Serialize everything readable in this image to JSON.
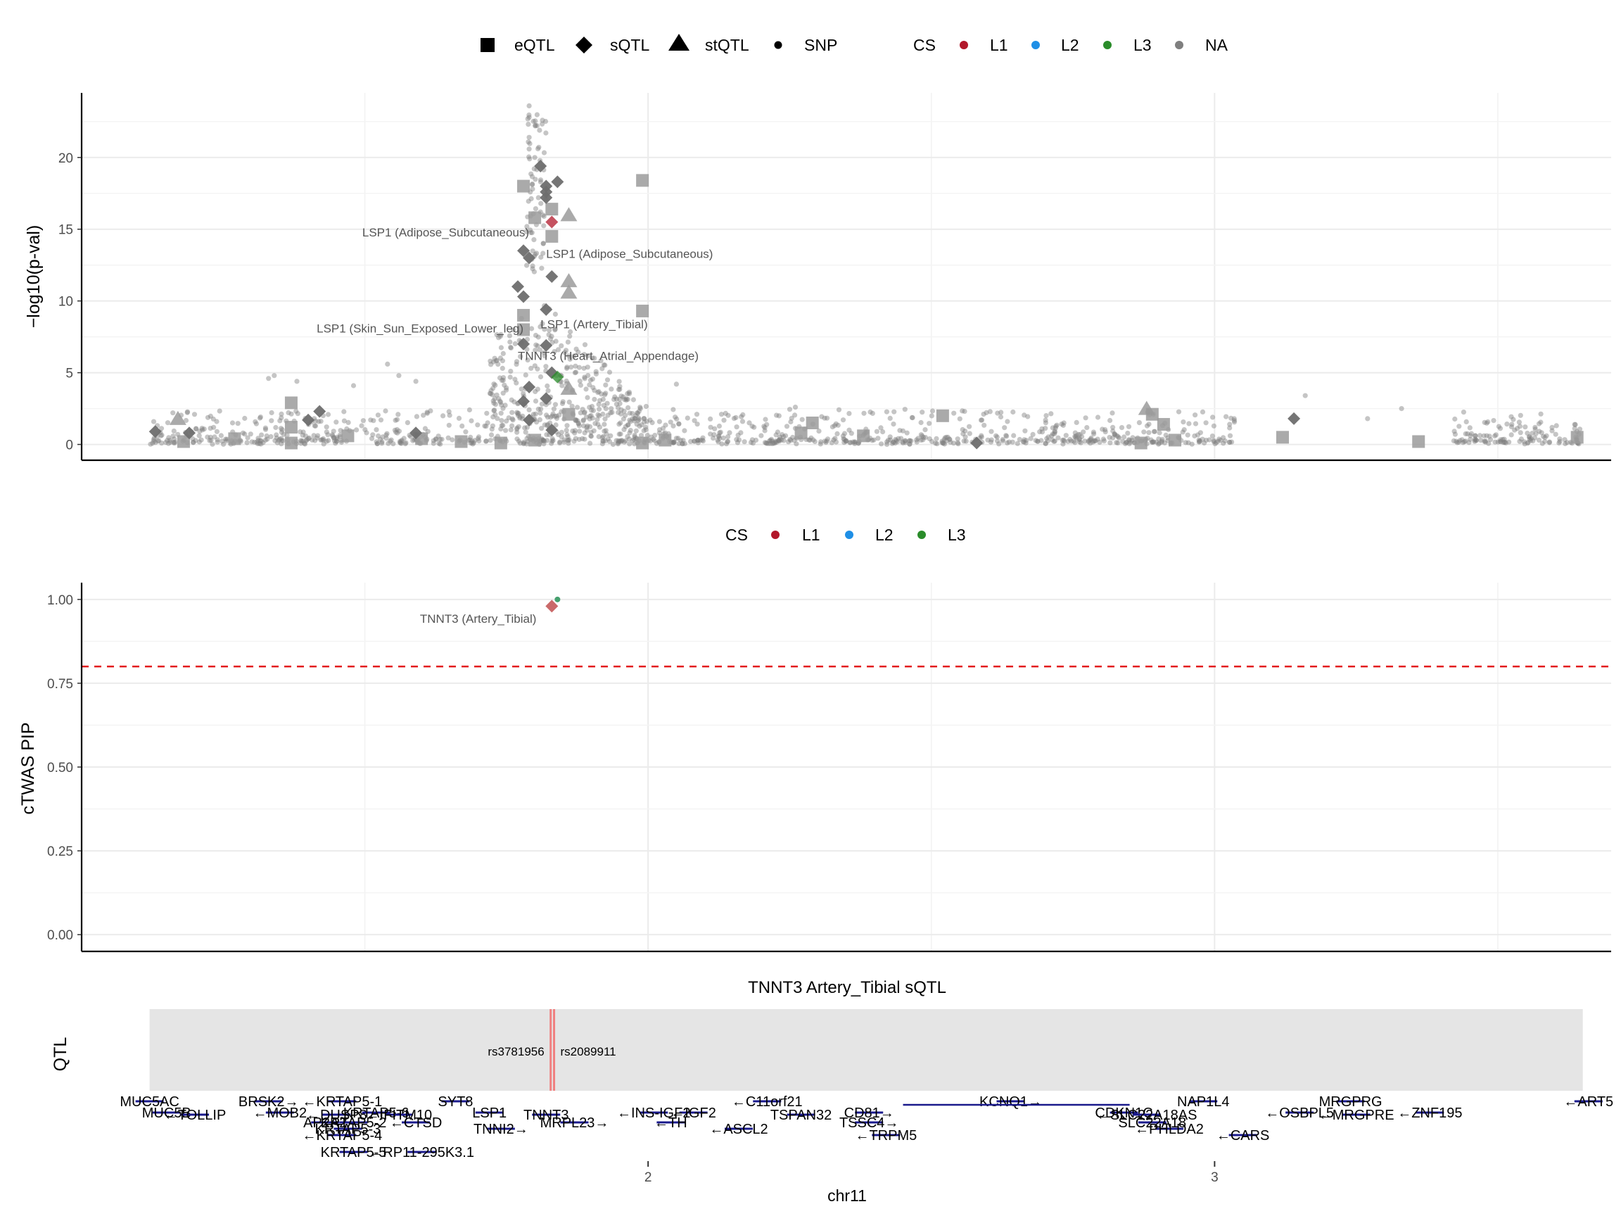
{
  "chart_data": [
    {
      "type": "scatter",
      "panel": "gwas",
      "ylabel": "−log10(p-val)",
      "ylim": [
        -1.1,
        24.5
      ],
      "xlim": [
        1.0,
        3.7
      ],
      "yticks": [
        0,
        5,
        10,
        15,
        20
      ],
      "grid": true,
      "legend": {
        "position": "top",
        "shapes": [
          {
            "label": "eQTL",
            "shape": "square"
          },
          {
            "label": "sQTL",
            "shape": "diamond"
          },
          {
            "label": "stQTL",
            "shape": "triangle"
          },
          {
            "label": "SNP",
            "shape": "circle"
          }
        ],
        "cs_title": "CS",
        "cs": [
          {
            "label": "L1",
            "color": "#b2182b"
          },
          {
            "label": "L2",
            "color": "#1f8fe6"
          },
          {
            "label": "L3",
            "color": "#2a8c2a"
          },
          {
            "label": "NA",
            "color": "#7f7f7f"
          }
        ]
      },
      "annotations": [
        {
          "text": "LSP1 (Adipose_Subcutaneous)",
          "x": 1.79,
          "y": 14.5,
          "anchor": "end"
        },
        {
          "text": "LSP1 (Adipose_Subcutaneous)",
          "x": 1.82,
          "y": 13.0,
          "anchor": "start"
        },
        {
          "text": "LSP1 (Skin_Sun_Exposed_Lower_leg)",
          "x": 1.78,
          "y": 7.8,
          "anchor": "end"
        },
        {
          "text": "LSP1 (Artery_Tibial)",
          "x": 1.81,
          "y": 8.1,
          "anchor": "start"
        },
        {
          "text": "TNNT3 (Heart_Atrial_Appendage)",
          "x": 1.77,
          "y": 5.9,
          "anchor": "start"
        }
      ],
      "qtl_markers": [
        {
          "type": "eQTL",
          "x": 1.18,
          "y": 0.2
        },
        {
          "type": "eQTL",
          "x": 1.27,
          "y": 0.4
        },
        {
          "type": "eQTL",
          "x": 1.37,
          "y": 2.9
        },
        {
          "type": "eQTL",
          "x": 1.37,
          "y": 1.2
        },
        {
          "type": "eQTL",
          "x": 1.37,
          "y": 0.1
        },
        {
          "type": "eQTL",
          "x": 1.47,
          "y": 0.6
        },
        {
          "type": "eQTL",
          "x": 1.6,
          "y": 0.4
        },
        {
          "type": "eQTL",
          "x": 1.67,
          "y": 0.2
        },
        {
          "type": "eQTL",
          "x": 1.74,
          "y": 0.1
        },
        {
          "type": "eQTL",
          "x": 1.78,
          "y": 18.0
        },
        {
          "type": "eQTL",
          "x": 1.8,
          "y": 15.8
        },
        {
          "type": "eQTL",
          "x": 1.78,
          "y": 9.0
        },
        {
          "type": "eQTL",
          "x": 1.78,
          "y": 8.0
        },
        {
          "type": "eQTL",
          "x": 1.83,
          "y": 16.4
        },
        {
          "type": "eQTL",
          "x": 1.83,
          "y": 14.5
        },
        {
          "type": "eQTL",
          "x": 1.86,
          "y": 2.1
        },
        {
          "type": "eQTL",
          "x": 1.8,
          "y": 0.3
        },
        {
          "type": "eQTL",
          "x": 1.99,
          "y": 18.4
        },
        {
          "type": "eQTL",
          "x": 1.99,
          "y": 9.3
        },
        {
          "type": "eQTL",
          "x": 1.99,
          "y": 0.1
        },
        {
          "type": "eQTL",
          "x": 2.03,
          "y": 0.3
        },
        {
          "type": "eQTL",
          "x": 2.27,
          "y": 0.8
        },
        {
          "type": "eQTL",
          "x": 2.29,
          "y": 1.5
        },
        {
          "type": "eQTL",
          "x": 2.38,
          "y": 0.6
        },
        {
          "type": "eQTL",
          "x": 2.52,
          "y": 2.0
        },
        {
          "type": "eQTL",
          "x": 2.89,
          "y": 2.1
        },
        {
          "type": "eQTL",
          "x": 2.91,
          "y": 1.4
        },
        {
          "type": "eQTL",
          "x": 2.87,
          "y": 0.1
        },
        {
          "type": "eQTL",
          "x": 2.93,
          "y": 0.3
        },
        {
          "type": "eQTL",
          "x": 3.12,
          "y": 0.5
        },
        {
          "type": "eQTL",
          "x": 3.36,
          "y": 0.2
        },
        {
          "type": "eQTL",
          "x": 3.64,
          "y": 0.5
        },
        {
          "type": "sQTL",
          "x": 1.13,
          "y": 0.9
        },
        {
          "type": "sQTL",
          "x": 1.19,
          "y": 0.8
        },
        {
          "type": "sQTL",
          "x": 1.4,
          "y": 1.7
        },
        {
          "type": "sQTL",
          "x": 1.42,
          "y": 2.3
        },
        {
          "type": "sQTL",
          "x": 1.59,
          "y": 0.8
        },
        {
          "type": "sQTL",
          "x": 1.77,
          "y": 11.0
        },
        {
          "type": "sQTL",
          "x": 1.78,
          "y": 13.5
        },
        {
          "type": "sQTL",
          "x": 1.79,
          "y": 13.0
        },
        {
          "type": "sQTL",
          "x": 1.78,
          "y": 10.3
        },
        {
          "type": "sQTL",
          "x": 1.78,
          "y": 7.0
        },
        {
          "type": "sQTL",
          "x": 1.79,
          "y": 4.0
        },
        {
          "type": "sQTL",
          "x": 1.78,
          "y": 3.0
        },
        {
          "type": "sQTL",
          "x": 1.79,
          "y": 1.7
        },
        {
          "type": "sQTL",
          "x": 1.81,
          "y": 19.4
        },
        {
          "type": "sQTL",
          "x": 1.82,
          "y": 18.0
        },
        {
          "type": "sQTL",
          "x": 1.82,
          "y": 17.6
        },
        {
          "type": "sQTL",
          "x": 1.82,
          "y": 17.2
        },
        {
          "type": "sQTL",
          "x": 1.84,
          "y": 18.3
        },
        {
          "type": "sQTL",
          "x": 1.82,
          "y": 9.4
        },
        {
          "type": "sQTL",
          "x": 1.83,
          "y": 11.7
        },
        {
          "type": "sQTL",
          "x": 1.82,
          "y": 6.9
        },
        {
          "type": "sQTL",
          "x": 1.83,
          "y": 5.0
        },
        {
          "type": "sQTL",
          "x": 1.82,
          "y": 3.2
        },
        {
          "type": "sQTL",
          "x": 1.83,
          "y": 1.0
        },
        {
          "type": "sQTL",
          "x": 2.58,
          "y": 0.1
        },
        {
          "type": "sQTL",
          "x": 3.14,
          "y": 1.8
        },
        {
          "type": "stQTL",
          "x": 1.17,
          "y": 1.8
        },
        {
          "type": "stQTL",
          "x": 1.86,
          "y": 16.0
        },
        {
          "type": "stQTL",
          "x": 1.86,
          "y": 11.4
        },
        {
          "type": "stQTL",
          "x": 1.86,
          "y": 10.6
        },
        {
          "type": "stQTL",
          "x": 1.86,
          "y": 3.9
        },
        {
          "type": "stQTL",
          "x": 2.88,
          "y": 2.5
        }
      ],
      "cs_points": [
        {
          "x": 1.83,
          "y": 15.5,
          "cs": "L1",
          "shape": "diamond"
        },
        {
          "x": 1.84,
          "y": 4.7,
          "cs": "L3",
          "shape": "diamond"
        }
      ]
    },
    {
      "type": "scatter",
      "panel": "pip",
      "ylabel": "cTWAS PIP",
      "ylim": [
        -0.05,
        1.05
      ],
      "xlim": [
        1.0,
        3.7
      ],
      "yticks": [
        0.0,
        0.25,
        0.5,
        0.75,
        1.0
      ],
      "ytick_labels": [
        "0.00",
        "0.25",
        "0.50",
        "0.75",
        "1.00"
      ],
      "threshold": 0.8,
      "grid": true,
      "legend": {
        "position": "top",
        "cs_title": "CS",
        "cs": [
          {
            "label": "L1",
            "color": "#b2182b"
          },
          {
            "label": "L2",
            "color": "#1f8fe6"
          },
          {
            "label": "L3",
            "color": "#2a8c2a"
          }
        ]
      },
      "points": [
        {
          "x": 1.83,
          "y": 0.98,
          "cs": "L1",
          "shape": "diamond"
        },
        {
          "x": 1.84,
          "y": 1.0,
          "cs": "L3",
          "shape": "circle"
        }
      ],
      "annotations": [
        {
          "text": "TNNT3 (Artery_Tibial)",
          "x": 1.7,
          "y": 0.93
        }
      ]
    },
    {
      "type": "other",
      "panel": "qtl_track",
      "title": "TNNT3 Artery_Tibial sQTL",
      "ylabel": "QTL",
      "range": [
        1.12,
        3.65
      ],
      "snps": [
        {
          "label": "rs3781956",
          "x": 1.828,
          "side": "left"
        },
        {
          "label": "rs2089911",
          "x": 1.834,
          "side": "right"
        }
      ],
      "xlabel": "chr11",
      "xticks": [
        2,
        3
      ],
      "genes": [
        {
          "label": "MUC5AC",
          "x": 1.12,
          "row": 0
        },
        {
          "label": "MUC5B",
          "x": 1.15,
          "row": 1
        },
        {
          "label": "←TOLLIP",
          "x": 1.2,
          "row": 2
        },
        {
          "label": "BRSK2→",
          "x": 1.33,
          "row": 0
        },
        {
          "label": "←MOB2",
          "x": 1.35,
          "row": 1
        },
        {
          "label": "←KRTAP5-1",
          "x": 1.46,
          "row": 0
        },
        {
          "label": "←DUSP8",
          "x": 1.45,
          "row": 2
        },
        {
          "label": "KRTAP5-6",
          "x": 1.52,
          "row": 1
        },
        {
          "label": "AP2A2",
          "x": 1.43,
          "row": 3
        },
        {
          "label": "KRTAP5-2",
          "x": 1.48,
          "row": 3
        },
        {
          "label": "←IFITM10",
          "x": 1.56,
          "row": 2
        },
        {
          "label": "←CTSD",
          "x": 1.59,
          "row": 3
        },
        {
          "label": "KRTAP5-3",
          "x": 1.47,
          "row": 4
        },
        {
          "label": "←KRTAP5-4",
          "x": 1.46,
          "row": 5
        },
        {
          "label": "KRTAP5-5",
          "x": 1.48,
          "row": 6
        },
        {
          "label": "←RP11-295K3.1",
          "x": 1.6,
          "row": 6
        },
        {
          "label": "SYT8",
          "x": 1.66,
          "row": 0
        },
        {
          "label": "LSP1",
          "x": 1.72,
          "row": 1
        },
        {
          "label": "TNNT3",
          "x": 1.82,
          "row": 2
        },
        {
          "label": "TNNI2→",
          "x": 1.74,
          "row": 4
        },
        {
          "label": "MRPL23→",
          "x": 1.87,
          "row": 3
        },
        {
          "label": "←IGF2",
          "x": 2.08,
          "row": 1
        },
        {
          "label": "←INS-IGF2",
          "x": 2.01,
          "row": 1
        },
        {
          "label": "←TH",
          "x": 2.04,
          "row": 3
        },
        {
          "label": "←ASCL2",
          "x": 2.16,
          "row": 4
        },
        {
          "label": "←C11orf21",
          "x": 2.21,
          "row": 0
        },
        {
          "label": "TSPAN32",
          "x": 2.27,
          "row": 2
        },
        {
          "label": "CD81→",
          "x": 2.39,
          "row": 1
        },
        {
          "label": "TSSC4→",
          "x": 2.39,
          "row": 3
        },
        {
          "label": "←TRPM5",
          "x": 2.42,
          "row": 5
        },
        {
          "label": "KCNQ1→",
          "x": 2.64,
          "row": 0
        },
        {
          "label": "CDKN1C",
          "x": 2.84,
          "row": 1
        },
        {
          "label": "←SLC22A18AS",
          "x": 2.88,
          "row": 2
        },
        {
          "label": "SLC22A18",
          "x": 2.89,
          "row": 3
        },
        {
          "label": "←PHLDA2",
          "x": 2.92,
          "row": 4
        },
        {
          "label": "NAP1L4",
          "x": 2.98,
          "row": 0
        },
        {
          "label": "←CARS",
          "x": 3.05,
          "row": 5
        },
        {
          "label": "←OSBPL5",
          "x": 3.15,
          "row": 1
        },
        {
          "label": "MRGPRG",
          "x": 3.24,
          "row": 0
        },
        {
          "label": "←MRGPRE",
          "x": 3.25,
          "row": 2
        },
        {
          "label": "←ZNF195",
          "x": 3.38,
          "row": 1
        },
        {
          "label": "←ART5",
          "x": 3.66,
          "row": 0
        }
      ]
    }
  ]
}
